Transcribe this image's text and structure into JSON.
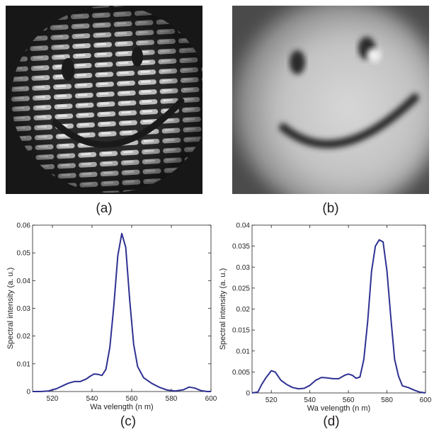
{
  "panel_labels": {
    "a": "(a)",
    "b": "(b)",
    "c": "(c)",
    "d": "(d)"
  },
  "colors": {
    "line": "#2e3192",
    "axis": "#231f20"
  },
  "chart_data": [
    {
      "type": "line",
      "panel": "(c)",
      "xlabel": "Wa velength (n m)",
      "ylabel": "Spectral intensity (a. u.)",
      "xlim": [
        510,
        600
      ],
      "ylim": [
        0,
        0.06
      ],
      "xticks": [
        520,
        540,
        560,
        580,
        600
      ],
      "yticks": [
        0,
        0.01,
        0.02,
        0.03,
        0.04,
        0.05,
        0.06
      ],
      "ytick_labels": [
        "0",
        "0.01",
        "0.02",
        "0.03",
        "0.04",
        "0.05",
        "0.06"
      ],
      "grid": false,
      "series": [
        {
          "x": [
            510,
            514,
            518,
            522,
            525,
            528,
            531,
            534,
            537,
            539,
            541,
            543,
            545,
            547,
            549,
            551,
            553,
            555,
            557,
            559,
            561,
            563,
            566,
            570,
            574,
            578,
            582,
            586,
            589,
            592,
            595,
            598,
            600
          ],
          "y": [
            0,
            0,
            0.0002,
            0.001,
            0.002,
            0.003,
            0.0036,
            0.0036,
            0.0045,
            0.0055,
            0.0063,
            0.0062,
            0.0058,
            0.008,
            0.016,
            0.031,
            0.049,
            0.057,
            0.052,
            0.033,
            0.017,
            0.009,
            0.005,
            0.003,
            0.0015,
            0.0005,
            0.0002,
            0.0006,
            0.0016,
            0.0012,
            0.0003,
            0,
            0
          ]
        }
      ]
    },
    {
      "type": "line",
      "panel": "(d)",
      "xlabel": "Wa velength (n m)",
      "ylabel": "Spectral intensity (a. u.)",
      "xlim": [
        510,
        600
      ],
      "ylim": [
        0,
        0.04
      ],
      "xticks": [
        520,
        540,
        560,
        580,
        600
      ],
      "yticks": [
        0,
        0.005,
        0.01,
        0.015,
        0.02,
        0.025,
        0.03,
        0.035,
        0.04
      ],
      "ytick_labels": [
        "0",
        "0.005",
        "0.01",
        "0.015",
        "0.02",
        "0.025",
        "0.03",
        "0.035",
        "0.04"
      ],
      "grid": false,
      "series": [
        {
          "x": [
            510,
            513,
            515,
            517,
            520,
            522,
            525,
            528,
            531,
            534,
            537,
            540,
            543,
            546,
            549,
            552,
            555,
            558,
            560,
            562,
            564,
            566,
            568,
            570,
            572,
            574,
            576,
            578,
            580,
            582,
            584,
            586,
            588,
            591,
            594,
            597,
            600
          ],
          "y": [
            0,
            0.0002,
            0.002,
            0.0035,
            0.0053,
            0.005,
            0.003,
            0.002,
            0.0013,
            0.001,
            0.0011,
            0.0018,
            0.003,
            0.0037,
            0.0036,
            0.0034,
            0.0034,
            0.0042,
            0.0045,
            0.0042,
            0.0035,
            0.0038,
            0.008,
            0.017,
            0.029,
            0.035,
            0.0365,
            0.036,
            0.029,
            0.018,
            0.008,
            0.004,
            0.0017,
            0.0013,
            0.0007,
            0.0002,
            0
          ]
        }
      ]
    }
  ]
}
